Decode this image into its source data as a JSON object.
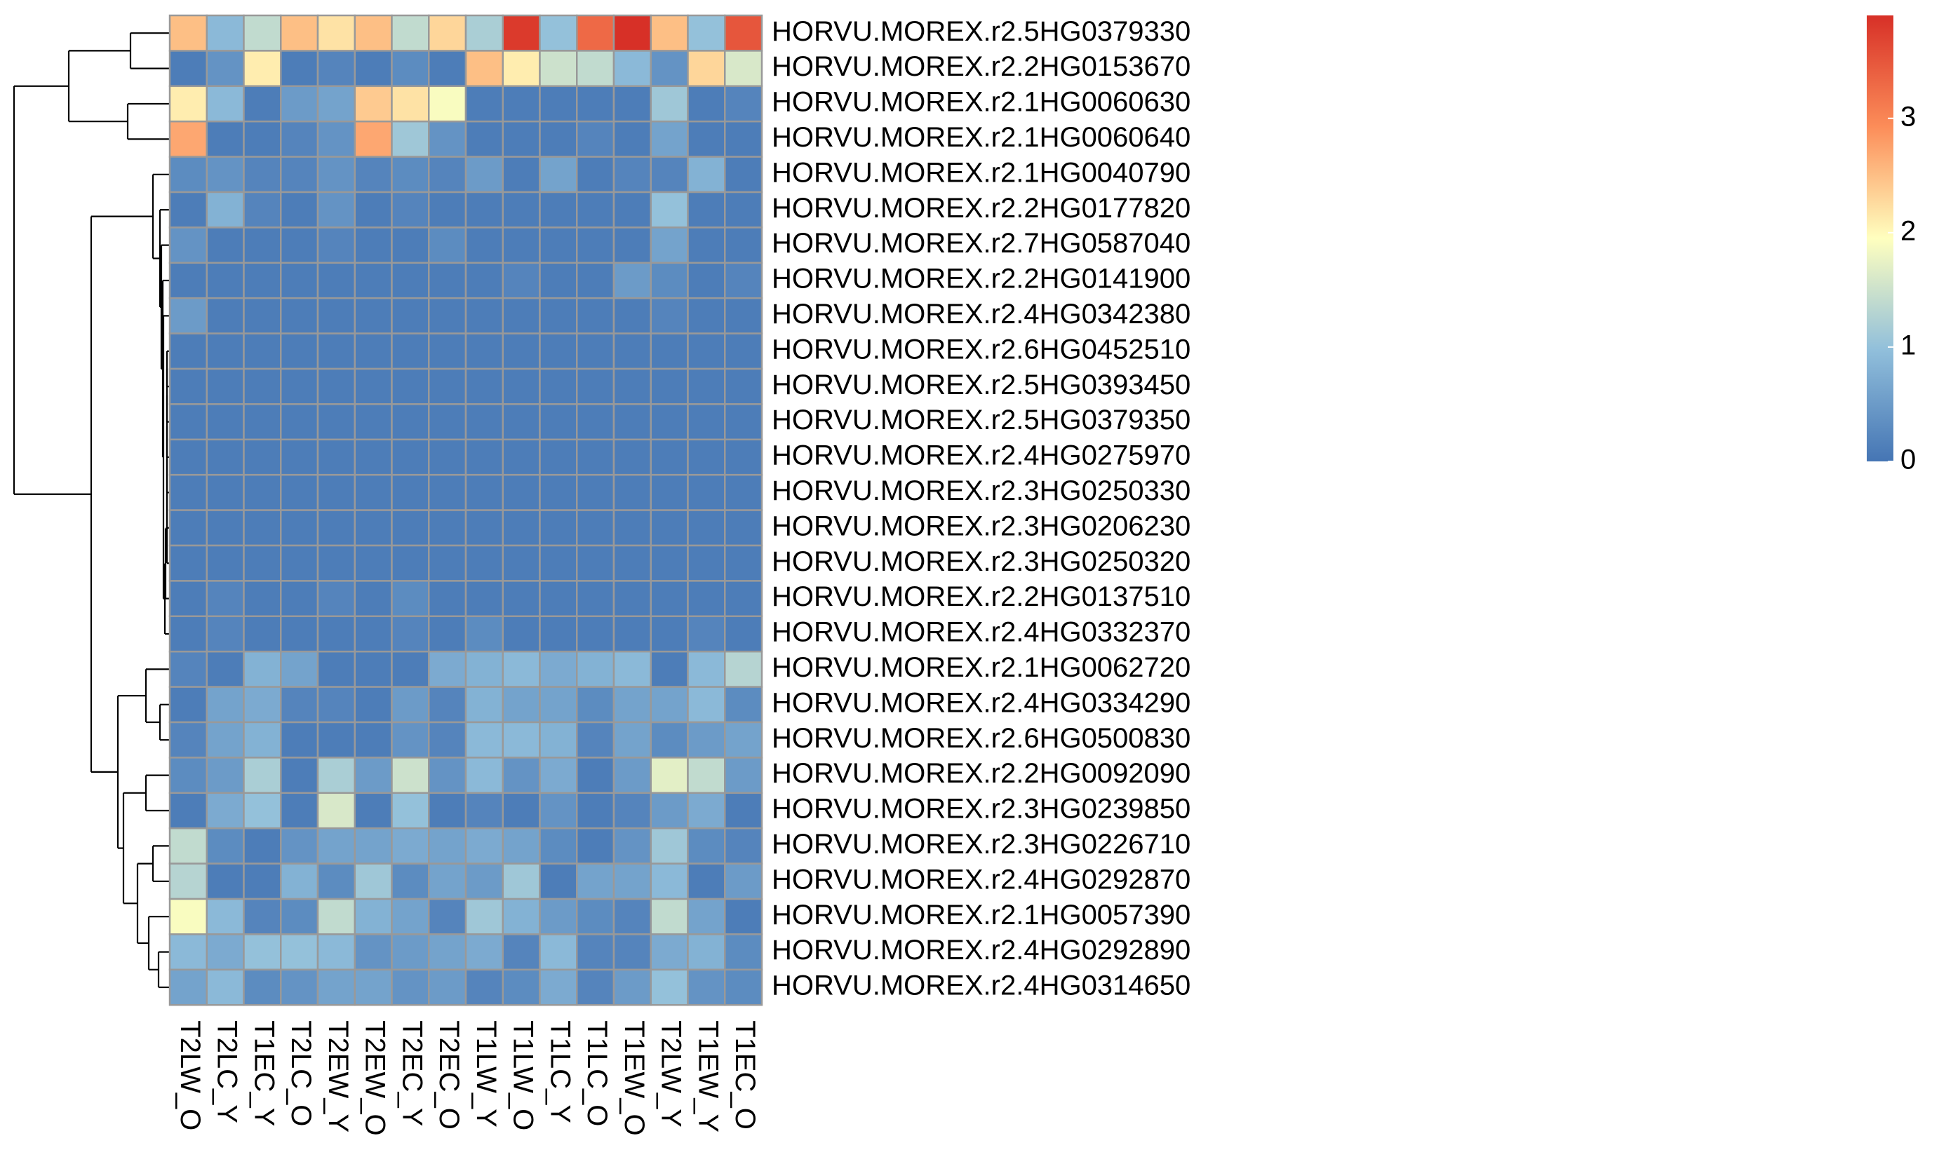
{
  "chart_data": {
    "type": "heatmap",
    "colors": {
      "low": "#4575b4",
      "mid": "#ffffbf",
      "high": "#d73027",
      "grid": "#999999",
      "dendrogram": "#000000"
    },
    "legend": {
      "min": 0,
      "max": 3.9,
      "ticks": [
        0,
        1,
        2,
        3
      ],
      "tick_labels": [
        "0",
        "1",
        "2",
        "3"
      ]
    },
    "columns": [
      "T2LW_O",
      "T2LC_Y",
      "T1EC_Y",
      "T2LC_O",
      "T2EW_Y",
      "T2EW_O",
      "T2EC_Y",
      "T2EC_O",
      "T1LW_Y",
      "T1LW_O",
      "T1LC_Y",
      "T1LC_O",
      "T1EW_O",
      "T2LW_Y",
      "T1EW_Y",
      "T1EC_O"
    ],
    "rows": [
      "HORVU.MOREX.r2.5HG0379330",
      "HORVU.MOREX.r2.2HG0153670",
      "HORVU.MOREX.r2.1HG0060630",
      "HORVU.MOREX.r2.1HG0060640",
      "HORVU.MOREX.r2.1HG0040790",
      "HORVU.MOREX.r2.2HG0177820",
      "HORVU.MOREX.r2.7HG0587040",
      "HORVU.MOREX.r2.2HG0141900",
      "HORVU.MOREX.r2.4HG0342380",
      "HORVU.MOREX.r2.6HG0452510",
      "HORVU.MOREX.r2.5HG0393450",
      "HORVU.MOREX.r2.5HG0379350",
      "HORVU.MOREX.r2.4HG0275970",
      "HORVU.MOREX.r2.3HG0250330",
      "HORVU.MOREX.r2.3HG0206230",
      "HORVU.MOREX.r2.3HG0250320",
      "HORVU.MOREX.r2.2HG0137510",
      "HORVU.MOREX.r2.4HG0332370",
      "HORVU.MOREX.r2.1HG0062720",
      "HORVU.MOREX.r2.4HG0334290",
      "HORVU.MOREX.r2.6HG0500830",
      "HORVU.MOREX.r2.2HG0092090",
      "HORVU.MOREX.r2.3HG0239850",
      "HORVU.MOREX.r2.3HG0226710",
      "HORVU.MOREX.r2.4HG0292870",
      "HORVU.MOREX.r2.1HG0057390",
      "HORVU.MOREX.r2.4HG0292890",
      "HORVU.MOREX.r2.4HG0314650"
    ],
    "values": [
      [
        2.5,
        0.9,
        1.4,
        2.5,
        2.2,
        2.5,
        1.4,
        2.3,
        1.2,
        3.8,
        1.0,
        3.3,
        3.9,
        2.5,
        1.0,
        3.5
      ],
      [
        0.1,
        0.4,
        2.1,
        0.1,
        0.2,
        0.1,
        0.3,
        0.1,
        2.5,
        2.1,
        1.5,
        1.4,
        0.9,
        0.4,
        2.3,
        1.6
      ],
      [
        2.1,
        0.9,
        0.1,
        0.5,
        0.6,
        2.4,
        2.2,
        1.9,
        0.1,
        0.1,
        0.1,
        0.1,
        0.1,
        1.1,
        0.1,
        0.2
      ],
      [
        2.7,
        0.1,
        0.1,
        0.2,
        0.4,
        2.7,
        1.1,
        0.4,
        0.1,
        0.1,
        0.1,
        0.2,
        0.1,
        0.6,
        0.1,
        0.1
      ],
      [
        0.3,
        0.4,
        0.2,
        0.2,
        0.4,
        0.2,
        0.3,
        0.2,
        0.5,
        0.1,
        0.6,
        0.1,
        0.2,
        0.2,
        0.8,
        0.1
      ],
      [
        0.1,
        0.8,
        0.2,
        0.1,
        0.4,
        0.1,
        0.2,
        0.1,
        0.1,
        0.1,
        0.1,
        0.1,
        0.1,
        1.0,
        0.1,
        0.1
      ],
      [
        0.4,
        0.1,
        0.1,
        0.1,
        0.2,
        0.1,
        0.1,
        0.3,
        0.1,
        0.1,
        0.1,
        0.1,
        0.1,
        0.6,
        0.1,
        0.1
      ],
      [
        0.1,
        0.1,
        0.1,
        0.1,
        0.1,
        0.1,
        0.1,
        0.1,
        0.1,
        0.2,
        0.1,
        0.1,
        0.5,
        0.3,
        0.1,
        0.2
      ],
      [
        0.5,
        0.1,
        0.1,
        0.1,
        0.1,
        0.1,
        0.1,
        0.1,
        0.1,
        0.1,
        0.1,
        0.1,
        0.1,
        0.2,
        0.1,
        0.1
      ],
      [
        0.1,
        0.1,
        0.1,
        0.1,
        0.1,
        0.1,
        0.1,
        0.1,
        0.1,
        0.1,
        0.1,
        0.1,
        0.1,
        0.1,
        0.1,
        0.1
      ],
      [
        0.1,
        0.1,
        0.1,
        0.1,
        0.1,
        0.1,
        0.1,
        0.1,
        0.1,
        0.1,
        0.1,
        0.1,
        0.1,
        0.1,
        0.1,
        0.1
      ],
      [
        0.1,
        0.1,
        0.1,
        0.1,
        0.1,
        0.1,
        0.1,
        0.1,
        0.1,
        0.1,
        0.1,
        0.1,
        0.1,
        0.1,
        0.1,
        0.1
      ],
      [
        0.1,
        0.1,
        0.1,
        0.1,
        0.1,
        0.1,
        0.1,
        0.1,
        0.1,
        0.1,
        0.1,
        0.1,
        0.1,
        0.1,
        0.1,
        0.1
      ],
      [
        0.1,
        0.1,
        0.1,
        0.1,
        0.1,
        0.1,
        0.1,
        0.1,
        0.1,
        0.1,
        0.1,
        0.1,
        0.1,
        0.1,
        0.1,
        0.1
      ],
      [
        0.1,
        0.1,
        0.1,
        0.1,
        0.1,
        0.1,
        0.1,
        0.1,
        0.1,
        0.1,
        0.1,
        0.1,
        0.1,
        0.1,
        0.1,
        0.1
      ],
      [
        0.1,
        0.1,
        0.1,
        0.1,
        0.1,
        0.1,
        0.1,
        0.1,
        0.1,
        0.1,
        0.1,
        0.1,
        0.1,
        0.1,
        0.1,
        0.1
      ],
      [
        0.1,
        0.2,
        0.1,
        0.1,
        0.2,
        0.1,
        0.3,
        0.1,
        0.1,
        0.1,
        0.1,
        0.1,
        0.1,
        0.1,
        0.1,
        0.1
      ],
      [
        0.1,
        0.2,
        0.1,
        0.1,
        0.1,
        0.1,
        0.2,
        0.1,
        0.3,
        0.1,
        0.1,
        0.1,
        0.1,
        0.1,
        0.2,
        0.1
      ],
      [
        0.2,
        0.1,
        0.8,
        0.6,
        0.1,
        0.1,
        0.1,
        0.7,
        0.8,
        0.9,
        0.7,
        0.8,
        0.9,
        0.1,
        0.9,
        1.3
      ],
      [
        0.1,
        0.6,
        0.7,
        0.2,
        0.2,
        0.1,
        0.5,
        0.2,
        0.8,
        0.6,
        0.6,
        0.3,
        0.6,
        0.6,
        0.9,
        0.3
      ],
      [
        0.2,
        0.6,
        0.8,
        0.1,
        0.1,
        0.1,
        0.4,
        0.2,
        0.9,
        0.9,
        0.8,
        0.2,
        0.6,
        0.3,
        0.5,
        0.6
      ],
      [
        0.3,
        0.5,
        1.2,
        0.1,
        1.2,
        0.5,
        1.5,
        0.4,
        0.9,
        0.4,
        0.7,
        0.1,
        0.5,
        1.7,
        1.4,
        0.5
      ],
      [
        0.1,
        0.7,
        1.0,
        0.1,
        1.6,
        0.1,
        1.0,
        0.1,
        0.2,
        0.1,
        0.4,
        0.1,
        0.2,
        0.5,
        0.7,
        0.1
      ],
      [
        1.4,
        0.3,
        0.1,
        0.4,
        0.6,
        0.6,
        0.7,
        0.6,
        0.7,
        0.6,
        0.3,
        0.1,
        0.4,
        1.1,
        0.3,
        0.2
      ],
      [
        1.3,
        0.1,
        0.1,
        0.8,
        0.3,
        1.1,
        0.3,
        0.6,
        0.5,
        1.1,
        0.1,
        0.6,
        0.6,
        0.9,
        0.1,
        0.5
      ],
      [
        1.9,
        0.9,
        0.2,
        0.3,
        1.4,
        0.8,
        0.6,
        0.2,
        1.1,
        0.8,
        0.5,
        0.3,
        0.2,
        1.4,
        0.6,
        0.1
      ],
      [
        0.9,
        0.7,
        1.0,
        1.0,
        0.9,
        0.4,
        0.5,
        0.6,
        0.7,
        0.2,
        0.9,
        0.2,
        0.2,
        0.7,
        0.8,
        0.3
      ],
      [
        0.6,
        0.9,
        0.3,
        0.4,
        0.6,
        0.6,
        0.4,
        0.5,
        0.2,
        0.3,
        0.7,
        0.2,
        0.5,
        1.0,
        0.4,
        0.3
      ]
    ]
  }
}
